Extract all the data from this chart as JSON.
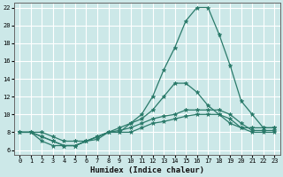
{
  "xlabel": "Humidex (Indice chaleur)",
  "xlim": [
    -0.5,
    23.5
  ],
  "ylim": [
    5.5,
    22.5
  ],
  "xticks": [
    0,
    1,
    2,
    3,
    4,
    5,
    6,
    7,
    8,
    9,
    10,
    11,
    12,
    13,
    14,
    15,
    16,
    17,
    18,
    19,
    20,
    21,
    22,
    23
  ],
  "yticks": [
    6,
    8,
    10,
    12,
    14,
    16,
    18,
    20,
    22
  ],
  "background_color": "#cce8e8",
  "grid_color": "#ffffff",
  "line_color": "#2a7a6a",
  "lines": [
    {
      "x": [
        0,
        1,
        2,
        3,
        4,
        5,
        6,
        7,
        8,
        9,
        10,
        11,
        12,
        13,
        14,
        15,
        16,
        17,
        18,
        19,
        20,
        21,
        22,
        23
      ],
      "y": [
        8,
        8,
        8,
        7.5,
        7,
        7,
        7,
        7.5,
        8,
        8,
        9,
        10,
        12,
        15,
        17.5,
        20.5,
        22,
        22,
        19,
        15.5,
        11.5,
        10,
        8.5,
        8.5
      ]
    },
    {
      "x": [
        0,
        1,
        2,
        3,
        4,
        5,
        6,
        7,
        8,
        9,
        10,
        11,
        12,
        13,
        14,
        15,
        16,
        17,
        18,
        19,
        20,
        21,
        22,
        23
      ],
      "y": [
        8,
        8,
        7,
        6.5,
        6.5,
        6.5,
        7,
        7.5,
        8,
        8.5,
        9,
        9.5,
        10.5,
        12,
        13.5,
        13.5,
        12.5,
        11,
        10,
        9,
        8.5,
        8.5,
        8.5,
        8.5
      ]
    },
    {
      "x": [
        0,
        1,
        2,
        3,
        4,
        5,
        6,
        7,
        8,
        9,
        10,
        11,
        12,
        13,
        14,
        15,
        16,
        17,
        18,
        19,
        20,
        21,
        22,
        23
      ],
      "y": [
        8,
        8,
        7.5,
        7,
        6.5,
        6.5,
        7,
        7.2,
        8,
        8.2,
        8.5,
        9,
        9.5,
        9.8,
        10,
        10.5,
        10.5,
        10.5,
        10.5,
        10,
        9,
        8.2,
        8.2,
        8.2
      ]
    },
    {
      "x": [
        0,
        1,
        2,
        3,
        4,
        5,
        6,
        7,
        8,
        9,
        10,
        11,
        12,
        13,
        14,
        15,
        16,
        17,
        18,
        19,
        20,
        21,
        22,
        23
      ],
      "y": [
        8,
        8,
        7.5,
        7,
        6.5,
        6.5,
        7,
        7.5,
        8,
        8,
        8,
        8.5,
        9,
        9.2,
        9.5,
        9.8,
        10,
        10,
        10,
        9.5,
        8.5,
        8,
        8,
        8
      ]
    }
  ]
}
